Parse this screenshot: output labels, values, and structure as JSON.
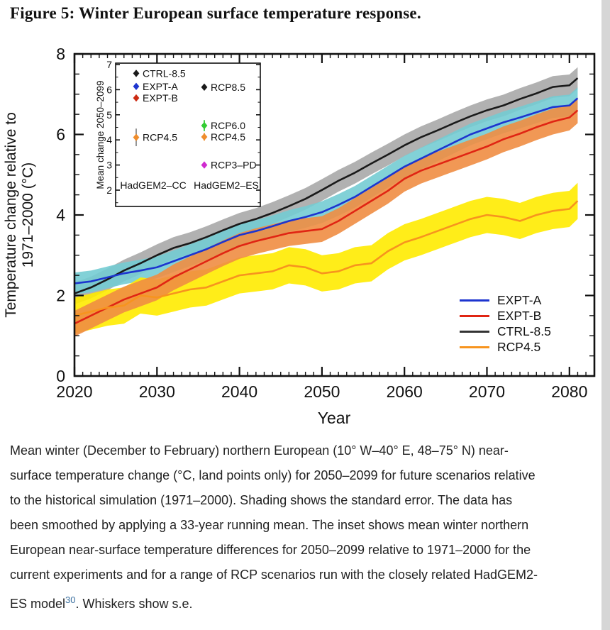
{
  "title": "Figure 5: Winter European surface temperature response.",
  "chart_data": {
    "type": "line",
    "xlabel": "Year",
    "ylabel_line1": "Temperature change relative to",
    "ylabel_line2": "1971–2000 (°C)",
    "xlim": [
      2020,
      2083
    ],
    "ylim": [
      0,
      8
    ],
    "x_ticks": [
      2020,
      2030,
      2040,
      2050,
      2060,
      2070,
      2080
    ],
    "y_ticks": [
      0,
      2,
      4,
      6,
      8
    ],
    "grid": false,
    "x": [
      2020,
      2022,
      2024,
      2026,
      2028,
      2030,
      2032,
      2034,
      2036,
      2038,
      2040,
      2042,
      2044,
      2046,
      2048,
      2050,
      2052,
      2054,
      2056,
      2058,
      2060,
      2062,
      2064,
      2066,
      2068,
      2070,
      2072,
      2074,
      2076,
      2078,
      2080,
      2081
    ],
    "series": [
      {
        "name": "CTRL-8.5",
        "color": "#1a1a1a",
        "band_color": "#a8a8a8",
        "band": 0.27,
        "values": [
          2.05,
          2.2,
          2.4,
          2.62,
          2.8,
          3.0,
          3.18,
          3.3,
          3.45,
          3.62,
          3.78,
          3.9,
          4.05,
          4.22,
          4.4,
          4.62,
          4.85,
          5.05,
          5.28,
          5.5,
          5.73,
          5.93,
          6.1,
          6.28,
          6.45,
          6.6,
          6.72,
          6.88,
          7.02,
          7.18,
          7.22,
          7.4
        ]
      },
      {
        "name": "EXPT-A",
        "color": "#1d35cf",
        "band_color": "#74ccd3",
        "band": 0.27,
        "values": [
          2.3,
          2.35,
          2.45,
          2.55,
          2.62,
          2.7,
          2.85,
          3.0,
          3.15,
          3.33,
          3.5,
          3.6,
          3.72,
          3.85,
          3.95,
          4.07,
          4.25,
          4.45,
          4.7,
          4.95,
          5.2,
          5.4,
          5.6,
          5.8,
          6.0,
          6.15,
          6.3,
          6.42,
          6.55,
          6.68,
          6.72,
          6.9
        ]
      },
      {
        "name": "EXPT-B",
        "color": "#e02513",
        "band_color": "#ef8d43",
        "band": 0.32,
        "values": [
          1.3,
          1.5,
          1.7,
          1.9,
          2.05,
          2.2,
          2.45,
          2.65,
          2.85,
          3.05,
          3.23,
          3.35,
          3.45,
          3.55,
          3.6,
          3.65,
          3.85,
          4.1,
          4.35,
          4.6,
          4.9,
          5.1,
          5.25,
          5.4,
          5.55,
          5.7,
          5.88,
          6.02,
          6.18,
          6.32,
          6.42,
          6.6
        ]
      },
      {
        "name": "RCP4.5",
        "color": "#f7941e",
        "band_color": "#ffeb00",
        "band": 0.45,
        "values": [
          1.5,
          1.6,
          1.7,
          1.75,
          2.0,
          1.95,
          2.05,
          2.15,
          2.2,
          2.35,
          2.5,
          2.55,
          2.6,
          2.75,
          2.7,
          2.55,
          2.6,
          2.75,
          2.8,
          3.1,
          3.32,
          3.45,
          3.6,
          3.75,
          3.9,
          4.0,
          3.95,
          3.85,
          4.0,
          4.1,
          4.15,
          4.35
        ]
      }
    ],
    "band_order": [
      "CTRL-8.5",
      "EXPT-A",
      "RCP4.5",
      "EXPT-B"
    ],
    "legend": {
      "position": "lower right",
      "entries": [
        {
          "label": "EXPT-A",
          "color": "#1d35cf"
        },
        {
          "label": "EXPT-B",
          "color": "#e02513"
        },
        {
          "label": "CTRL-8.5",
          "color": "#333333"
        },
        {
          "label": "RCP4.5",
          "color": "#f7941e"
        }
      ]
    },
    "inset": {
      "ylabel": "Mean change 2050–2099",
      "ylim": [
        2,
        7
      ],
      "y_ticks": [
        2,
        3,
        4,
        5,
        6,
        7
      ],
      "groups": [
        {
          "label": "HadGEM2–CC",
          "items": [
            {
              "name": "CTRL-8.5",
              "value": 6.65,
              "se": 0.12,
              "color": "#1a1a1a"
            },
            {
              "name": "EXPT-A",
              "value": 6.13,
              "se": 0.12,
              "color": "#1d35cf"
            },
            {
              "name": "EXPT-B",
              "value": 5.67,
              "se": 0.12,
              "color": "#cc2a12"
            },
            {
              "name": "RCP4.5",
              "value": 4.1,
              "se": 0.35,
              "color": "#ef8d2c",
              "whisker_color": "#8a8a8a"
            }
          ]
        },
        {
          "label": "HadGEM2–ES",
          "items": [
            {
              "name": "RCP8.5",
              "value": 6.1,
              "se": 0.1,
              "color": "#1a1a1a"
            },
            {
              "name": "RCP6.0",
              "value": 4.57,
              "se": 0.22,
              "color": "#33cc33"
            },
            {
              "name": "RCP4.5",
              "value": 4.12,
              "se": 0.15,
              "color": "#ef8d2c"
            },
            {
              "name": "RCP3–PD",
              "value": 3.0,
              "se": 0.12,
              "color": "#cf2bcf"
            }
          ]
        }
      ]
    }
  },
  "caption": {
    "lines": [
      "Mean winter (December to February) northern European (10° W–40° E, 48–75° N) near-",
      "surface temperature change (°C, land points only) for 2050–2099 for future scenarios relative",
      "to the historical simulation (1971–2000). Shading shows the standard error. The data has",
      "been smoothed by applying a 33-year running mean. The inset shows mean winter northern",
      "European near-surface temperature differences for 2050–2099 relative to 1971–2000 for the",
      "current experiments and for a range of RCP scenarios run with the closely related HadGEM2-"
    ],
    "last_line": {
      "pre": "ES model",
      "ref": "30",
      "post": ". Whiskers show s.e."
    },
    "ref_color": "#3a6f9f"
  }
}
